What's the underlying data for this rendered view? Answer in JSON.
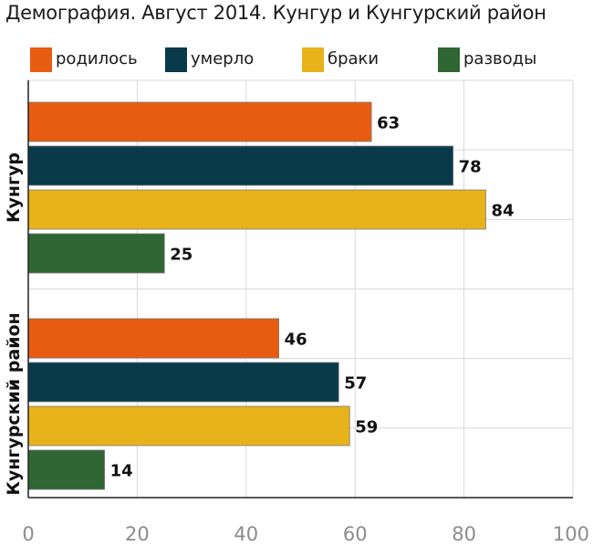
{
  "chart_data": {
    "type": "bar",
    "orientation": "horizontal",
    "title": "Демография. Август 2014. Кунгур и Кунгурский район",
    "categories": [
      "Кунгур",
      "Кунгурский район"
    ],
    "series": [
      {
        "name": "родилось",
        "color": "#e85c12",
        "values": [
          63,
          46
        ]
      },
      {
        "name": "умерло",
        "color": "#083a4a",
        "values": [
          78,
          57
        ]
      },
      {
        "name": "браки",
        "color": "#e8b31a",
        "values": [
          84,
          59
        ]
      },
      {
        "name": "разводы",
        "color": "#2f6634",
        "values": [
          25,
          14
        ]
      }
    ],
    "xlim": [
      0,
      100
    ],
    "xticks": [
      "0",
      "20",
      "40",
      "60",
      "80",
      "100"
    ],
    "grid": true,
    "legend": "top",
    "data_labels": true
  }
}
